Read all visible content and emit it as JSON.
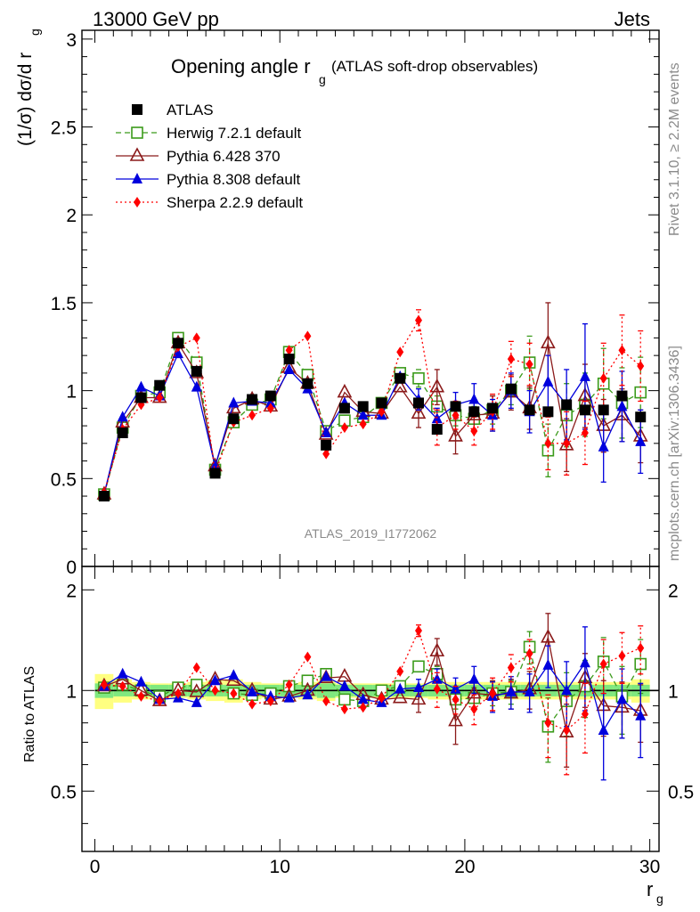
{
  "header": {
    "left": "13000 GeV pp",
    "right": "Jets"
  },
  "title": {
    "main": "Opening angle r",
    "sub": "g",
    "suffix": "(ATLAS soft-drop observables)"
  },
  "ylabel_main": "(1/σ) dσ/d r",
  "ylabel_sub": "g",
  "ylabel_ratio": "Ratio to ATLAS",
  "xlabel": "r",
  "xlabel_sub": "g",
  "watermark": "ATLAS_2019_I1772062",
  "side_text_top": "Rivet 3.1.10, ≥ 2.2M events",
  "side_text_bottom": "mcplots.cern.ch [arXiv:1306.3436]",
  "colors": {
    "data": "#000000",
    "herwig": "#3b9b1b",
    "pythia6": "#8b1a1a",
    "pythia8": "#0000dd",
    "sherpa": "#ff0000",
    "band_inner": "#7fe87f",
    "band_outer": "#ffff80"
  },
  "chart_data": [
    {
      "type": "scatter",
      "panel": "main",
      "title": "Opening angle r g (ATLAS soft-drop observables)",
      "xlabel": "r g",
      "ylabel": "(1/σ) dσ/d r g",
      "xlim": [
        -0.7,
        30.5
      ],
      "ylim": [
        0,
        3.05
      ],
      "yticks": [
        0,
        0.5,
        1,
        1.5,
        2,
        2.5,
        3
      ],
      "ytick_labels": [
        "0",
        "0.5",
        "1",
        "1.5",
        "2",
        "2.5",
        "3"
      ],
      "xticks": [
        0,
        10,
        20,
        30
      ],
      "xtick_labels": [
        "0",
        "10",
        "20",
        "30"
      ],
      "legend_position": "top-left",
      "x": [
        0.5,
        1.5,
        2.5,
        3.5,
        4.5,
        5.5,
        6.5,
        7.5,
        8.5,
        9.5,
        10.5,
        11.5,
        12.5,
        13.5,
        14.5,
        15.5,
        16.5,
        17.5,
        18.5,
        19.5,
        20.5,
        21.5,
        22.5,
        23.5,
        24.5,
        25.5,
        26.5,
        27.5,
        28.5,
        29.5
      ],
      "series": [
        {
          "name": "ATLAS",
          "key": "data",
          "style": "square-filled",
          "values": [
            0.4,
            0.76,
            0.96,
            1.03,
            1.27,
            1.11,
            0.53,
            0.84,
            0.95,
            0.97,
            1.18,
            1.04,
            0.69,
            0.9,
            0.91,
            0.93,
            1.07,
            0.93,
            0.78,
            0.91,
            0.88,
            0.9,
            1.01,
            0.89,
            0.88,
            0.92,
            0.89,
            0.89,
            0.97,
            0.85
          ]
        },
        {
          "name": "Herwig 7.2.1 default",
          "key": "herwig",
          "style": "square-open-dashed",
          "values": [
            0.41,
            0.79,
            0.97,
            0.99,
            1.3,
            1.16,
            0.55,
            0.82,
            0.92,
            0.95,
            1.22,
            1.09,
            0.77,
            0.83,
            0.85,
            0.93,
            1.1,
            1.07,
            0.91,
            0.86,
            0.84,
            0.89,
            1.0,
            1.16,
            0.66,
            0.86,
            0.92,
            1.04,
            0.93,
            0.99
          ],
          "errors": [
            0,
            0,
            0,
            0,
            0,
            0,
            0,
            0,
            0,
            0,
            0,
            0,
            0,
            0,
            0,
            0,
            0,
            0.05,
            0.06,
            0.06,
            0.07,
            0.08,
            0.08,
            0.15,
            0.15,
            0.18,
            0.18,
            0.2,
            0.2,
            0.2
          ]
        },
        {
          "name": "Pythia 6.428 370",
          "key": "pythia6",
          "style": "triangle-open",
          "values": [
            0.41,
            0.82,
            0.96,
            0.96,
            1.27,
            1.1,
            0.57,
            0.9,
            0.95,
            0.91,
            1.13,
            1.04,
            0.75,
            0.99,
            0.88,
            0.87,
            1.02,
            0.87,
            1.02,
            0.74,
            0.86,
            0.87,
            0.99,
            0.9,
            1.27,
            0.69,
            0.97,
            0.8,
            0.86,
            0.74
          ],
          "errors": [
            0,
            0,
            0,
            0,
            0,
            0,
            0,
            0,
            0,
            0,
            0,
            0,
            0,
            0,
            0,
            0,
            0,
            0.08,
            0.1,
            0.1,
            0.08,
            0.1,
            0.1,
            0.12,
            0.23,
            0.15,
            0.18,
            0.15,
            0.15,
            0.15
          ]
        },
        {
          "name": "Pythia 8.308 default",
          "key": "pythia8",
          "style": "triangle-filled",
          "values": [
            0.41,
            0.85,
            1.02,
            0.97,
            1.21,
            1.02,
            0.57,
            0.93,
            0.94,
            0.93,
            1.12,
            1.01,
            0.76,
            0.93,
            0.86,
            0.86,
            1.08,
            0.95,
            0.84,
            0.92,
            0.95,
            0.86,
            1.0,
            0.88,
            1.05,
            0.92,
            1.08,
            0.68,
            0.91,
            0.71
          ],
          "errors": [
            0,
            0,
            0,
            0,
            0,
            0,
            0,
            0,
            0,
            0,
            0,
            0,
            0,
            0,
            0,
            0,
            0,
            0.06,
            0.06,
            0.07,
            0.09,
            0.09,
            0.1,
            0.12,
            0.15,
            0.2,
            0.3,
            0.2,
            0.2,
            0.18
          ]
        },
        {
          "name": "Sherpa 2.2.9 default",
          "key": "sherpa",
          "style": "diamond-dotted",
          "values": [
            0.42,
            0.78,
            0.92,
            0.96,
            1.25,
            1.3,
            0.53,
            0.82,
            0.86,
            0.9,
            1.23,
            1.31,
            0.64,
            0.79,
            0.81,
            0.88,
            1.22,
            1.4,
            0.79,
            0.86,
            0.77,
            0.88,
            1.18,
            1.15,
            0.7,
            0.7,
            0.76,
            1.07,
            1.23,
            1.14
          ],
          "errors": [
            0,
            0,
            0,
            0,
            0,
            0,
            0,
            0,
            0,
            0,
            0,
            0,
            0,
            0,
            0,
            0,
            0,
            0.06,
            0.1,
            0.08,
            0.08,
            0.1,
            0.1,
            0.12,
            0.15,
            0.18,
            0.18,
            0.2,
            0.2,
            0.2
          ]
        }
      ]
    },
    {
      "type": "scatter",
      "panel": "ratio",
      "ylabel": "Ratio to ATLAS",
      "xlabel": "r g",
      "xlim": [
        -0.7,
        30.5
      ],
      "ylim": [
        0.33,
        2.35
      ],
      "yticks": [
        0.5,
        1,
        2
      ],
      "ytick_labels": [
        "0.5",
        "1",
        "2"
      ],
      "xticks": [
        0,
        10,
        20,
        30
      ],
      "xtick_labels": [
        "0",
        "10",
        "20",
        "30"
      ],
      "x": [
        0.5,
        1.5,
        2.5,
        3.5,
        4.5,
        5.5,
        6.5,
        7.5,
        8.5,
        9.5,
        10.5,
        11.5,
        12.5,
        13.5,
        14.5,
        15.5,
        16.5,
        17.5,
        18.5,
        19.5,
        20.5,
        21.5,
        22.5,
        23.5,
        24.5,
        25.5,
        26.5,
        27.5,
        28.5,
        29.5
      ],
      "band_inner_halfwidth": [
        0.05,
        0.04,
        0.04,
        0.04,
        0.04,
        0.04,
        0.04,
        0.04,
        0.04,
        0.04,
        0.04,
        0.04,
        0.05,
        0.04,
        0.04,
        0.04,
        0.04,
        0.04,
        0.04,
        0.04,
        0.04,
        0.04,
        0.04,
        0.04,
        0.04,
        0.04,
        0.04,
        0.04,
        0.04,
        0.04
      ],
      "band_outer_halfwidth": [
        0.12,
        0.08,
        0.06,
        0.05,
        0.05,
        0.06,
        0.07,
        0.08,
        0.06,
        0.05,
        0.05,
        0.06,
        0.07,
        0.05,
        0.05,
        0.05,
        0.05,
        0.05,
        0.06,
        0.06,
        0.06,
        0.06,
        0.06,
        0.06,
        0.06,
        0.06,
        0.06,
        0.06,
        0.06,
        0.08
      ],
      "series": [
        {
          "name": "Herwig 7.2.1 default",
          "key": "herwig",
          "style": "square-open-dashed",
          "values": [
            1.02,
            1.04,
            1.0,
            0.96,
            1.02,
            1.04,
            1.03,
            0.98,
            0.97,
            0.98,
            1.03,
            1.07,
            1.12,
            0.94,
            0.93,
            1.0,
            1.03,
            1.18,
            1.12,
            0.94,
            0.95,
            0.98,
            0.99,
            1.35,
            0.78,
            0.93,
            1.03,
            1.22,
            0.96,
            1.2
          ],
          "errors": [
            0,
            0,
            0,
            0,
            0,
            0,
            0,
            0,
            0,
            0,
            0,
            0,
            0,
            0,
            0,
            0,
            0,
            0.04,
            0.06,
            0.06,
            0.07,
            0.08,
            0.08,
            0.15,
            0.17,
            0.2,
            0.2,
            0.22,
            0.22,
            0.22
          ]
        },
        {
          "name": "Pythia 6.428 370",
          "key": "pythia6",
          "style": "triangle-open",
          "values": [
            1.03,
            1.08,
            1.0,
            0.93,
            1.0,
            0.99,
            1.08,
            1.07,
            1.0,
            0.94,
            0.96,
            1.0,
            1.09,
            1.1,
            0.97,
            0.94,
            0.95,
            0.94,
            1.31,
            0.81,
            0.98,
            0.97,
            0.98,
            1.01,
            1.44,
            0.75,
            1.09,
            0.9,
            0.89,
            0.87
          ],
          "errors": [
            0,
            0,
            0,
            0,
            0,
            0,
            0,
            0,
            0,
            0,
            0,
            0,
            0,
            0,
            0,
            0,
            0,
            0.08,
            0.12,
            0.12,
            0.09,
            0.1,
            0.1,
            0.13,
            0.26,
            0.16,
            0.2,
            0.17,
            0.17,
            0.17
          ]
        },
        {
          "name": "Pythia 8.308 default",
          "key": "pythia8",
          "style": "triangle-filled",
          "values": [
            1.03,
            1.12,
            1.06,
            0.94,
            0.95,
            0.92,
            1.07,
            1.11,
            0.99,
            0.96,
            0.95,
            0.97,
            1.1,
            1.03,
            0.94,
            0.92,
            1.01,
            1.02,
            1.08,
            1.01,
            1.08,
            0.96,
            0.99,
            0.99,
            1.19,
            1.0,
            1.21,
            0.76,
            0.94,
            0.84
          ],
          "errors": [
            0,
            0,
            0,
            0,
            0,
            0,
            0,
            0,
            0,
            0,
            0,
            0,
            0,
            0,
            0,
            0,
            0,
            0.06,
            0.08,
            0.08,
            0.1,
            0.1,
            0.11,
            0.13,
            0.17,
            0.22,
            0.34,
            0.22,
            0.22,
            0.21
          ]
        },
        {
          "name": "Sherpa 2.2.9 default",
          "key": "sherpa",
          "style": "diamond-dotted",
          "values": [
            1.04,
            1.03,
            0.96,
            0.93,
            0.98,
            1.17,
            1.0,
            0.98,
            0.91,
            0.93,
            1.04,
            1.26,
            0.93,
            0.88,
            0.89,
            0.95,
            1.14,
            1.51,
            1.01,
            0.94,
            0.88,
            0.98,
            1.17,
            1.29,
            0.8,
            0.76,
            0.85,
            1.2,
            1.27,
            1.34
          ],
          "errors": [
            0,
            0,
            0,
            0,
            0,
            0,
            0,
            0,
            0,
            0,
            0,
            0,
            0,
            0,
            0,
            0,
            0,
            0.06,
            0.12,
            0.09,
            0.09,
            0.11,
            0.11,
            0.13,
            0.17,
            0.2,
            0.2,
            0.22,
            0.22,
            0.22
          ]
        }
      ]
    }
  ]
}
